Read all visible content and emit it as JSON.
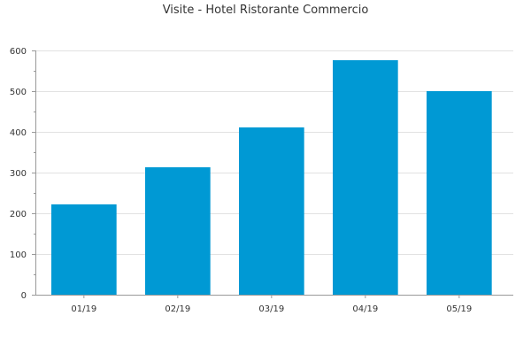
{
  "chart_data": {
    "type": "bar",
    "title": "Visite - Hotel Ristorante Commercio",
    "xlabel": "",
    "ylabel": "",
    "categories": [
      "01/19",
      "02/19",
      "03/19",
      "04/19",
      "05/19"
    ],
    "values": [
      222,
      313,
      411,
      576,
      500
    ],
    "ylim": [
      0,
      600
    ],
    "yticks": [
      0,
      100,
      200,
      300,
      400,
      500,
      600
    ],
    "grid": true,
    "legend": "none",
    "bar_color": "#0099d4",
    "grid_color": "#e2e2e2",
    "axis_color": "#999999"
  }
}
